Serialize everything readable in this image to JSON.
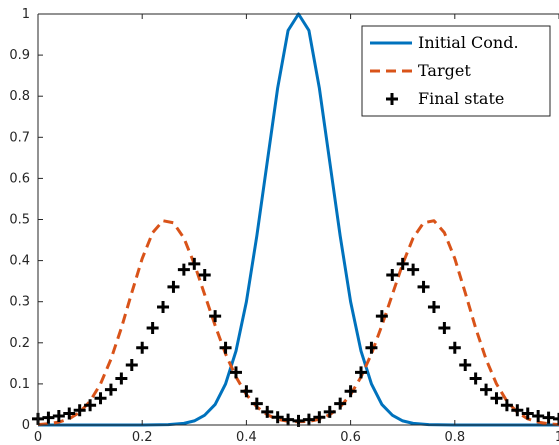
{
  "chart_data": {
    "type": "line",
    "title": "",
    "xlabel": "",
    "ylabel": "",
    "xlim": [
      0,
      1
    ],
    "ylim": [
      0,
      1
    ],
    "grid": false,
    "legend_position": "top-right",
    "xticks": [
      0,
      0.2,
      0.4,
      0.6,
      0.8,
      1
    ],
    "xtick_labels": [
      "0",
      "0.2",
      "0.4",
      "0.6",
      "0.8",
      "1"
    ],
    "yticks": [
      0,
      0.1,
      0.2,
      0.3,
      0.4,
      0.5,
      0.6,
      0.7,
      0.8,
      0.9,
      1
    ],
    "ytick_labels": [
      "0",
      "0.1",
      "0.2",
      "0.3",
      "0.4",
      "0.5",
      "0.6",
      "0.7",
      "0.8",
      "0.9",
      "1"
    ],
    "series": [
      {
        "name": "Initial Cond.",
        "style": "solid-line",
        "color": "#0072BD",
        "x": [
          0,
          0.05,
          0.1,
          0.15,
          0.2,
          0.25,
          0.28,
          0.3,
          0.32,
          0.34,
          0.36,
          0.38,
          0.4,
          0.42,
          0.44,
          0.46,
          0.48,
          0.5,
          0.52,
          0.54,
          0.56,
          0.58,
          0.6,
          0.62,
          0.64,
          0.66,
          0.68,
          0.7,
          0.72,
          0.75,
          0.8,
          0.85,
          0.9,
          0.95,
          1
        ],
        "y": [
          0,
          0,
          0,
          0,
          0,
          0.001,
          0.004,
          0.01,
          0.024,
          0.05,
          0.1,
          0.18,
          0.3,
          0.46,
          0.64,
          0.82,
          0.96,
          1.0,
          0.96,
          0.82,
          0.64,
          0.46,
          0.3,
          0.18,
          0.1,
          0.05,
          0.024,
          0.01,
          0.004,
          0.001,
          0,
          0,
          0,
          0,
          0
        ]
      },
      {
        "name": "Target",
        "style": "dashed-line",
        "color": "#D95319",
        "x": [
          0,
          0.02,
          0.04,
          0.06,
          0.08,
          0.1,
          0.12,
          0.14,
          0.16,
          0.18,
          0.2,
          0.22,
          0.24,
          0.26,
          0.28,
          0.3,
          0.32,
          0.34,
          0.36,
          0.38,
          0.4,
          0.42,
          0.44,
          0.46,
          0.48,
          0.5,
          0.52,
          0.54,
          0.56,
          0.58,
          0.6,
          0.62,
          0.64,
          0.66,
          0.68,
          0.7,
          0.72,
          0.74,
          0.76,
          0.78,
          0.8,
          0.82,
          0.84,
          0.86,
          0.88,
          0.9,
          0.92,
          0.94,
          0.96,
          0.98,
          1
        ],
        "y": [
          0.001,
          0.003,
          0.007,
          0.015,
          0.031,
          0.058,
          0.1,
          0.16,
          0.236,
          0.322,
          0.405,
          0.468,
          0.497,
          0.492,
          0.455,
          0.392,
          0.317,
          0.242,
          0.173,
          0.117,
          0.074,
          0.044,
          0.025,
          0.014,
          0.009,
          0.008,
          0.009,
          0.014,
          0.025,
          0.044,
          0.074,
          0.117,
          0.173,
          0.242,
          0.317,
          0.392,
          0.455,
          0.492,
          0.497,
          0.468,
          0.405,
          0.322,
          0.236,
          0.16,
          0.1,
          0.058,
          0.031,
          0.015,
          0.007,
          0.003,
          0.001
        ]
      },
      {
        "name": "Final state",
        "style": "plus-markers",
        "color": "#000000",
        "x": [
          0,
          0.02,
          0.04,
          0.06,
          0.08,
          0.1,
          0.12,
          0.14,
          0.16,
          0.18,
          0.2,
          0.22,
          0.24,
          0.26,
          0.28,
          0.3,
          0.32,
          0.34,
          0.36,
          0.38,
          0.4,
          0.42,
          0.44,
          0.46,
          0.48,
          0.5,
          0.52,
          0.54,
          0.56,
          0.58,
          0.6,
          0.62,
          0.64,
          0.66,
          0.68,
          0.7,
          0.72,
          0.74,
          0.76,
          0.78,
          0.8,
          0.82,
          0.84,
          0.86,
          0.88,
          0.9,
          0.92,
          0.94,
          0.96,
          0.98,
          1
        ],
        "y": [
          0.015,
          0.018,
          0.022,
          0.028,
          0.036,
          0.048,
          0.065,
          0.086,
          0.113,
          0.146,
          0.188,
          0.236,
          0.287,
          0.336,
          0.378,
          0.392,
          0.365,
          0.265,
          0.188,
          0.128,
          0.082,
          0.052,
          0.032,
          0.019,
          0.013,
          0.01,
          0.013,
          0.019,
          0.032,
          0.052,
          0.082,
          0.128,
          0.188,
          0.265,
          0.365,
          0.392,
          0.378,
          0.336,
          0.287,
          0.236,
          0.188,
          0.146,
          0.113,
          0.086,
          0.065,
          0.048,
          0.036,
          0.028,
          0.022,
          0.018,
          0.015
        ]
      }
    ]
  }
}
